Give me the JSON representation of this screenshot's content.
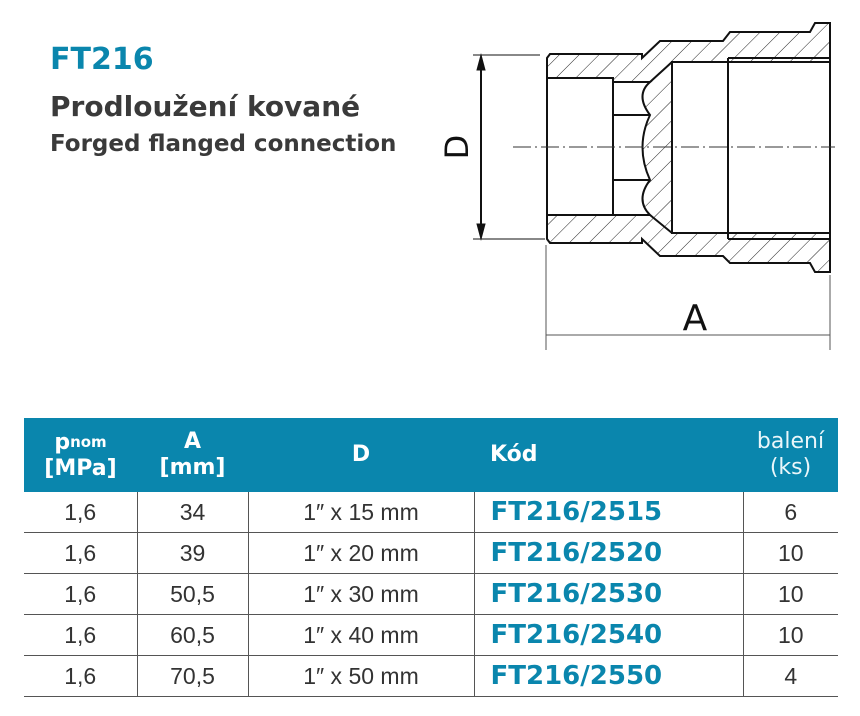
{
  "header": {
    "code": "FT216",
    "title_cz": "Prodloužení kované",
    "title_en": "Forged flanged connection"
  },
  "drawing": {
    "dim_d": "D",
    "dim_a": "A"
  },
  "table": {
    "headers": {
      "p": "p",
      "p_sub": "nom",
      "p_unit": "[MPa]",
      "a": "A",
      "a_unit": "[mm]",
      "d": "D",
      "code": "Kód",
      "pack": "balení",
      "pack_unit": "(ks)"
    },
    "rows": [
      {
        "p": "1,6",
        "a": "34",
        "d": "1″ x 15 mm",
        "code": "FT216/2515",
        "pack": "6"
      },
      {
        "p": "1,6",
        "a": "39",
        "d": "1″ x 20 mm",
        "code": "FT216/2520",
        "pack": "10"
      },
      {
        "p": "1,6",
        "a": "50,5",
        "d": "1″ x 30 mm",
        "code": "FT216/2530",
        "pack": "10"
      },
      {
        "p": "1,6",
        "a": "60,5",
        "d": "1″ x 40 mm",
        "code": "FT216/2540",
        "pack": "10"
      },
      {
        "p": "1,6",
        "a": "70,5",
        "d": "1″ x 50 mm",
        "code": "FT216/2550",
        "pack": "4"
      }
    ]
  },
  "colors": {
    "accent": "#0a86ad",
    "text": "#3a3a3a"
  }
}
